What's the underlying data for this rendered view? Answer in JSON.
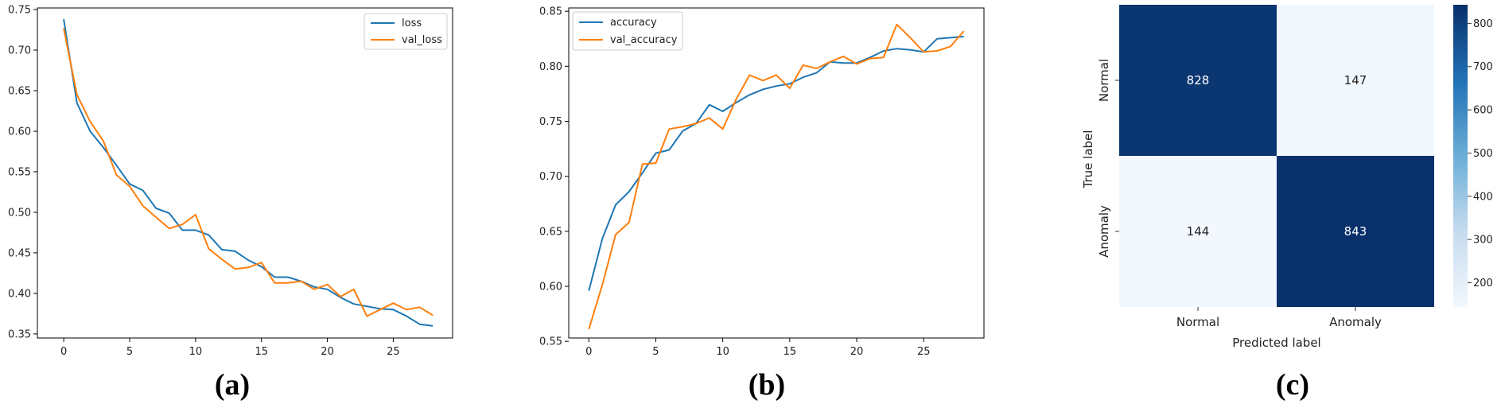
{
  "captions": [
    "(a)",
    "(b)",
    "(c)"
  ],
  "colors": {
    "series1": "#1f77b4",
    "series2": "#ff7f0e",
    "cm_dark": "#08306b",
    "cm_light": "#f2f8fd"
  },
  "chart_data": [
    {
      "type": "line",
      "x": [
        0,
        1,
        2,
        3,
        4,
        5,
        6,
        7,
        8,
        9,
        10,
        11,
        12,
        13,
        14,
        15,
        16,
        17,
        18,
        19,
        20,
        21,
        22,
        23,
        24,
        25,
        26,
        27,
        28
      ],
      "series": [
        {
          "name": "loss",
          "color": "#1f77b4",
          "values": [
            0.738,
            0.635,
            0.6,
            0.58,
            0.558,
            0.535,
            0.527,
            0.505,
            0.499,
            0.478,
            0.478,
            0.472,
            0.454,
            0.452,
            0.441,
            0.433,
            0.42,
            0.42,
            0.415,
            0.408,
            0.405,
            0.395,
            0.387,
            0.384,
            0.381,
            0.38,
            0.372,
            0.362,
            0.36
          ]
        },
        {
          "name": "val_loss",
          "color": "#ff7f0e",
          "values": [
            0.727,
            0.645,
            0.612,
            0.588,
            0.546,
            0.532,
            0.508,
            0.494,
            0.48,
            0.485,
            0.497,
            0.455,
            0.442,
            0.43,
            0.432,
            0.438,
            0.413,
            0.413,
            0.415,
            0.405,
            0.411,
            0.396,
            0.405,
            0.372,
            0.38,
            0.388,
            0.38,
            0.383,
            0.373
          ]
        }
      ],
      "xlim": [
        -2,
        29.5
      ],
      "ylim": [
        0.345,
        0.752
      ],
      "xticks": [
        0,
        5,
        10,
        15,
        20,
        25
      ],
      "yticks": [
        "0.35",
        "0.40",
        "0.45",
        "0.50",
        "0.55",
        "0.60",
        "0.65",
        "0.70",
        "0.75"
      ],
      "legend": "top-right",
      "grid": false
    },
    {
      "type": "line",
      "x": [
        0,
        1,
        2,
        3,
        4,
        5,
        6,
        7,
        8,
        9,
        10,
        11,
        12,
        13,
        14,
        15,
        16,
        17,
        18,
        19,
        20,
        21,
        22,
        23,
        24,
        25,
        26,
        27,
        28
      ],
      "series": [
        {
          "name": "accuracy",
          "color": "#1f77b4",
          "values": [
            0.596,
            0.643,
            0.674,
            0.686,
            0.703,
            0.721,
            0.724,
            0.741,
            0.748,
            0.765,
            0.759,
            0.767,
            0.774,
            0.779,
            0.782,
            0.784,
            0.79,
            0.794,
            0.804,
            0.803,
            0.803,
            0.808,
            0.814,
            0.816,
            0.815,
            0.813,
            0.825,
            0.826,
            0.827
          ]
        },
        {
          "name": "val_accuracy",
          "color": "#ff7f0e",
          "values": [
            0.561,
            0.601,
            0.647,
            0.658,
            0.711,
            0.712,
            0.743,
            0.745,
            0.748,
            0.753,
            0.743,
            0.77,
            0.792,
            0.787,
            0.792,
            0.78,
            0.801,
            0.798,
            0.804,
            0.809,
            0.802,
            0.807,
            0.808,
            0.838,
            0.826,
            0.813,
            0.814,
            0.818,
            0.832
          ]
        }
      ],
      "xlim": [
        -1.5,
        29.5
      ],
      "ylim": [
        0.553,
        0.853
      ],
      "xticks": [
        0,
        5,
        10,
        15,
        20,
        25
      ],
      "yticks": [
        "0.55",
        "0.60",
        "0.65",
        "0.70",
        "0.75",
        "0.80",
        "0.85"
      ],
      "legend": "top-left",
      "grid": false
    },
    {
      "type": "heatmap",
      "title": "",
      "xlabel": "Predicted label",
      "ylabel": "True label",
      "x_categories": [
        "Normal",
        "Anomaly"
      ],
      "y_categories": [
        "Normal",
        "Anomaly"
      ],
      "values": [
        [
          828,
          147
        ],
        [
          144,
          843
        ]
      ],
      "colorbar_ticks": [
        200,
        300,
        400,
        500,
        600,
        700,
        800
      ],
      "colorbar_range": [
        144,
        843
      ],
      "colormap": "Blues"
    }
  ]
}
